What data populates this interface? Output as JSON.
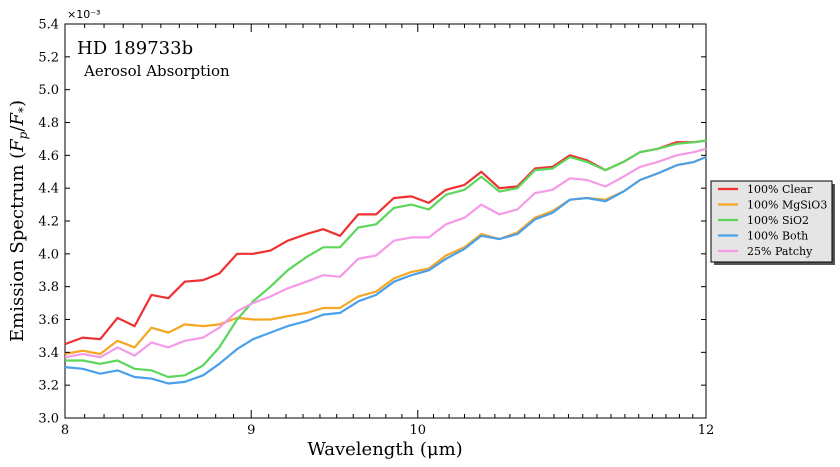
{
  "chart_data": {
    "type": "line",
    "title": "HD 189733b",
    "subtitle": "Aerosol Absorption",
    "xlabel": "Wavelength (μm)",
    "ylabel": "Emission Spectrum (F_p/F_*)",
    "y_multiplier_label": "×10⁻³",
    "x_scale": "log",
    "xlim": [
      8,
      12
    ],
    "ylim": [
      3.0,
      5.4
    ],
    "x_ticks": [
      8,
      9,
      10,
      12
    ],
    "x_tick_labels": [
      "8",
      "9",
      "10",
      "12"
    ],
    "y_ticks": [
      3.0,
      3.2,
      3.4,
      3.6,
      3.8,
      4.0,
      4.2,
      4.4,
      4.6,
      4.8,
      5.0,
      5.2,
      5.4
    ],
    "y_tick_labels": [
      "3.0",
      "3.2",
      "3.4",
      "3.6",
      "3.8",
      "4.0",
      "4.2",
      "4.4",
      "4.6",
      "4.8",
      "5.0",
      "5.2",
      "5.4"
    ],
    "grid": false,
    "legend_position": "outside-right",
    "x": [
      8.0,
      8.09,
      8.18,
      8.27,
      8.36,
      8.45,
      8.54,
      8.63,
      8.73,
      8.82,
      8.92,
      9.01,
      9.11,
      9.21,
      9.32,
      9.42,
      9.52,
      9.63,
      9.74,
      9.85,
      9.96,
      10.07,
      10.18,
      10.3,
      10.41,
      10.53,
      10.65,
      10.77,
      10.89,
      11.01,
      11.13,
      11.26,
      11.39,
      11.51,
      11.64,
      11.78,
      11.91,
      12.0
    ],
    "series": [
      {
        "name": "100% Clear",
        "color": "#f03030",
        "values": [
          3.45,
          3.49,
          3.48,
          3.61,
          3.56,
          3.75,
          3.73,
          3.83,
          3.84,
          3.88,
          4.0,
          4.0,
          4.02,
          4.08,
          4.12,
          4.15,
          4.11,
          4.24,
          4.24,
          4.34,
          4.35,
          4.31,
          4.39,
          4.42,
          4.5,
          4.4,
          4.41,
          4.52,
          4.53,
          4.6,
          4.57,
          4.51,
          4.56,
          4.62,
          4.64,
          4.68,
          4.68,
          4.69
        ]
      },
      {
        "name": "100% MgSiO3",
        "color": "#f5a623",
        "values": [
          3.39,
          3.41,
          3.39,
          3.47,
          3.43,
          3.55,
          3.52,
          3.57,
          3.56,
          3.57,
          3.61,
          3.6,
          3.6,
          3.62,
          3.64,
          3.67,
          3.67,
          3.74,
          3.77,
          3.85,
          3.89,
          3.91,
          3.99,
          4.04,
          4.12,
          4.09,
          4.13,
          4.22,
          4.26,
          4.33,
          4.34,
          4.33,
          4.38,
          4.45,
          4.49,
          4.54,
          4.56,
          4.59
        ]
      },
      {
        "name": "100% SiO2",
        "color": "#5cd65c",
        "values": [
          3.35,
          3.35,
          3.33,
          3.35,
          3.3,
          3.29,
          3.25,
          3.26,
          3.32,
          3.43,
          3.6,
          3.71,
          3.8,
          3.9,
          3.98,
          4.04,
          4.04,
          4.16,
          4.18,
          4.28,
          4.3,
          4.27,
          4.36,
          4.39,
          4.47,
          4.38,
          4.4,
          4.51,
          4.52,
          4.59,
          4.56,
          4.51,
          4.56,
          4.62,
          4.64,
          4.67,
          4.68,
          4.69
        ]
      },
      {
        "name": "100% Both",
        "color": "#4aa0ea",
        "values": [
          3.31,
          3.3,
          3.27,
          3.29,
          3.25,
          3.24,
          3.21,
          3.22,
          3.26,
          3.33,
          3.42,
          3.48,
          3.52,
          3.56,
          3.59,
          3.63,
          3.64,
          3.71,
          3.75,
          3.83,
          3.87,
          3.9,
          3.97,
          4.03,
          4.11,
          4.09,
          4.12,
          4.21,
          4.25,
          4.33,
          4.34,
          4.32,
          4.38,
          4.45,
          4.49,
          4.54,
          4.56,
          4.59
        ]
      },
      {
        "name": "25% Patchy",
        "color": "#f59ae8",
        "values": [
          3.37,
          3.39,
          3.37,
          3.43,
          3.38,
          3.46,
          3.43,
          3.47,
          3.49,
          3.55,
          3.65,
          3.7,
          3.74,
          3.79,
          3.83,
          3.87,
          3.86,
          3.97,
          3.99,
          4.08,
          4.1,
          4.1,
          4.18,
          4.22,
          4.3,
          4.24,
          4.27,
          4.37,
          4.39,
          4.46,
          4.45,
          4.41,
          4.47,
          4.53,
          4.56,
          4.6,
          4.62,
          4.64
        ]
      }
    ]
  }
}
